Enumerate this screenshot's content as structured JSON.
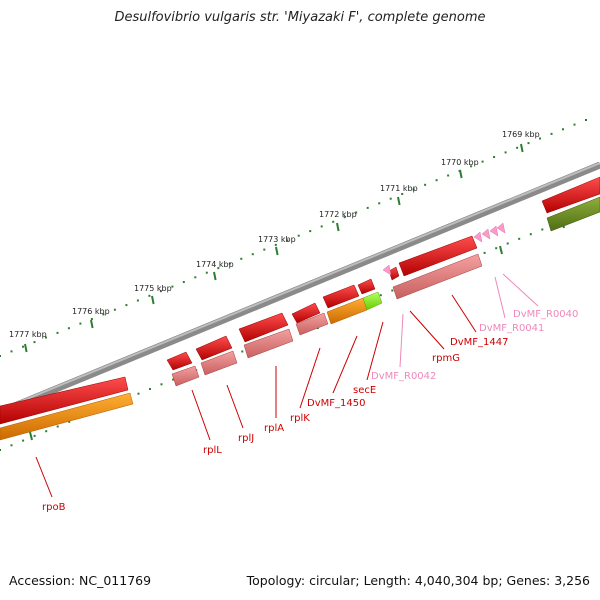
{
  "title": "Desulfovibrio vulgaris str. 'Miyazaki F', complete genome",
  "footer": {
    "accession": "Accession: NC_011769",
    "topology": "Topology: circular; Length: 4,040,304 bp; Genes: 3,256"
  },
  "scale": {
    "unit": "kbp",
    "labels": [
      "1777 kbp",
      "1776 kbp",
      "1775 kbp",
      "1774 kbp",
      "1773 kbp",
      "1772 kbp",
      "1771 kbp",
      "1770 kbp",
      "1769 kbp"
    ]
  },
  "colors": {
    "cds": "#ff1a1a",
    "gene": "#f08080",
    "rrna": "#ff8c00",
    "trna": "#ff99cc",
    "misc": "#99ff33",
    "olive": "#6b8e23",
    "backbone": "#8a8a8a",
    "tick": "#2e7d32",
    "label_dark": "#cc0000",
    "label_light": "#ee88bb"
  },
  "gene_labels": [
    "rpoB",
    "rplL",
    "rplJ",
    "rplA",
    "rplK",
    "DvMF_1450",
    "secE",
    "DvMF_R0042",
    "rpmG",
    "DvMF_1447",
    "DvMF_R0041",
    "DvMF_R0040"
  ]
}
